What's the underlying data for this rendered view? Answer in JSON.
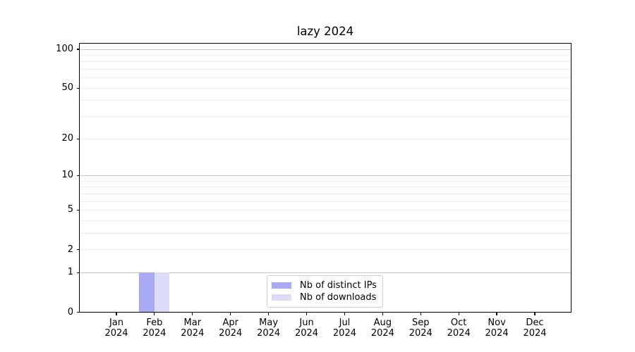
{
  "chart_data": {
    "type": "bar",
    "title": "lazy 2024",
    "categories": [
      "Jan 2024",
      "Feb 2024",
      "Mar 2024",
      "Apr 2024",
      "May 2024",
      "Jun 2024",
      "Jul 2024",
      "Aug 2024",
      "Sep 2024",
      "Oct 2024",
      "Nov 2024",
      "Dec 2024"
    ],
    "series": [
      {
        "name": "Nb of distinct IPs",
        "color": "#a9a9f5",
        "values": [
          0,
          1,
          0,
          0,
          0,
          0,
          0,
          0,
          0,
          0,
          0,
          0
        ]
      },
      {
        "name": "Nb of downloads",
        "color": "#dcdcf8",
        "values": [
          0,
          1,
          0,
          0,
          0,
          0,
          0,
          0,
          0,
          0,
          0,
          0
        ]
      }
    ],
    "y_scale": "log1p",
    "ylim": [
      0,
      112
    ],
    "y_ticks": [
      {
        "value": 0,
        "label": "0"
      },
      {
        "value": 1,
        "label": "1"
      },
      {
        "value": 2,
        "label": "2"
      },
      {
        "value": 5,
        "label": "5"
      },
      {
        "value": 10,
        "label": "10"
      },
      {
        "value": 20,
        "label": "20"
      },
      {
        "value": 50,
        "label": "50"
      },
      {
        "value": 100,
        "label": "100"
      }
    ],
    "y_major_gridlines": [
      1,
      10,
      100
    ],
    "y_minor_gridlines": [
      2,
      3,
      4,
      5,
      6,
      7,
      8,
      9,
      20,
      30,
      40,
      50,
      60,
      70,
      80,
      90
    ],
    "grid": "horizontal",
    "legend_position": "lower center",
    "colors": {
      "spine": "#000000",
      "grid_major": "#c4c4c4",
      "grid_minor": "#ececec",
      "legend_border": "#cccccc",
      "background": "#ffffff"
    }
  }
}
